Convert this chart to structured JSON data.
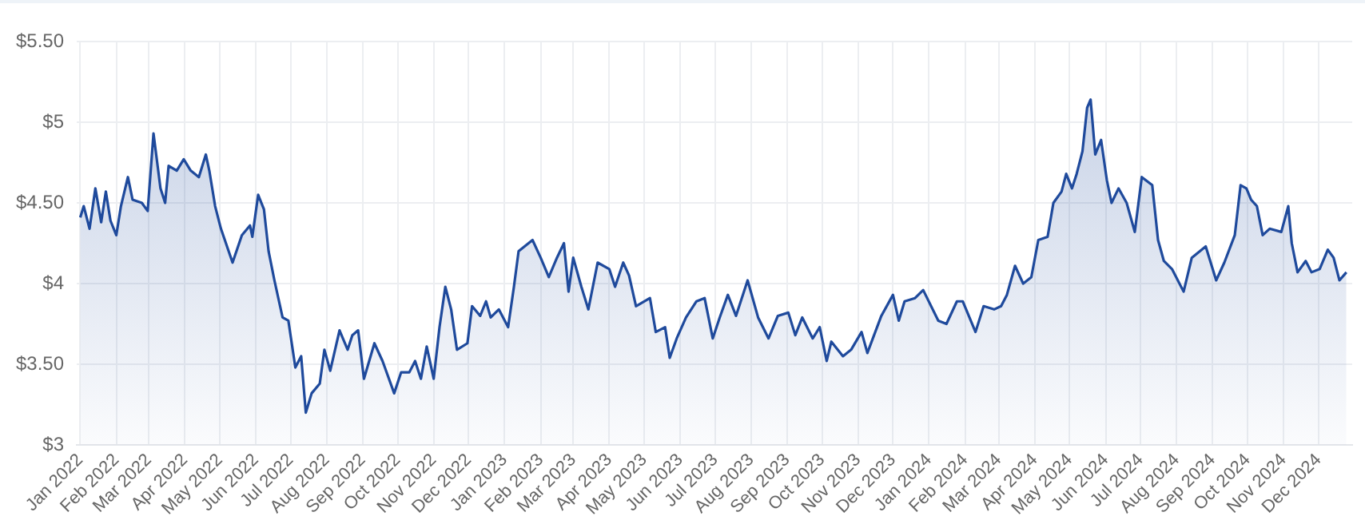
{
  "chart_data": {
    "type": "area",
    "x": [
      "2022-01-01",
      "2022-01-04",
      "2022-01-09",
      "2022-01-14",
      "2022-01-19",
      "2022-01-23",
      "2022-01-27",
      "2022-02-01",
      "2022-02-05",
      "2022-02-11",
      "2022-02-15",
      "2022-02-23",
      "2022-02-28",
      "2022-03-05",
      "2022-03-11",
      "2022-03-15",
      "2022-03-18",
      "2022-03-25",
      "2022-03-31",
      "2022-04-06",
      "2022-04-13",
      "2022-04-19",
      "2022-04-22",
      "2022-04-27",
      "2022-05-02",
      "2022-05-12",
      "2022-05-20",
      "2022-05-27",
      "2022-05-29",
      "2022-06-03",
      "2022-06-08",
      "2022-06-12",
      "2022-06-17",
      "2022-06-24",
      "2022-06-29",
      "2022-07-05",
      "2022-07-10",
      "2022-07-14",
      "2022-07-19",
      "2022-07-26",
      "2022-07-30",
      "2022-08-04",
      "2022-08-12",
      "2022-08-19",
      "2022-08-23",
      "2022-08-28",
      "2022-09-02",
      "2022-09-11",
      "2022-09-18",
      "2022-09-28",
      "2022-10-04",
      "2022-10-11",
      "2022-10-16",
      "2022-10-21",
      "2022-10-26",
      "2022-11-01",
      "2022-11-06",
      "2022-11-11",
      "2022-11-16",
      "2022-11-21",
      "2022-11-30",
      "2022-12-04",
      "2022-12-11",
      "2022-12-16",
      "2022-12-20",
      "2022-12-27",
      "2023-01-04",
      "2023-01-09",
      "2023-01-13",
      "2023-01-25",
      "2023-02-01",
      "2023-02-08",
      "2023-02-15",
      "2023-02-21",
      "2023-02-25",
      "2023-03-01",
      "2023-03-08",
      "2023-03-14",
      "2023-03-22",
      "2023-04-01",
      "2023-04-06",
      "2023-04-13",
      "2023-04-18",
      "2023-04-24",
      "2023-05-06",
      "2023-05-11",
      "2023-05-19",
      "2023-05-23",
      "2023-05-29",
      "2023-06-06",
      "2023-06-15",
      "2023-06-22",
      "2023-06-29",
      "2023-07-05",
      "2023-07-12",
      "2023-07-19",
      "2023-07-29",
      "2023-08-07",
      "2023-08-16",
      "2023-08-24",
      "2023-09-02",
      "2023-09-08",
      "2023-09-14",
      "2023-09-23",
      "2023-09-29",
      "2023-10-05",
      "2023-10-09",
      "2023-10-19",
      "2023-10-26",
      "2023-11-04",
      "2023-11-09",
      "2023-11-21",
      "2023-12-01",
      "2023-12-06",
      "2023-12-11",
      "2023-12-20",
      "2023-12-27",
      "2024-01-09",
      "2024-01-16",
      "2024-01-25",
      "2024-01-30",
      "2024-02-10",
      "2024-02-17",
      "2024-02-26",
      "2024-03-03",
      "2024-03-08",
      "2024-03-15",
      "2024-03-22",
      "2024-03-29",
      "2024-04-04",
      "2024-04-12",
      "2024-04-17",
      "2024-04-24",
      "2024-04-28",
      "2024-05-03",
      "2024-05-07",
      "2024-05-12",
      "2024-05-16",
      "2024-05-19",
      "2024-05-23",
      "2024-05-28",
      "2024-06-02",
      "2024-06-06",
      "2024-06-12",
      "2024-06-19",
      "2024-06-26",
      "2024-07-02",
      "2024-07-11",
      "2024-07-16",
      "2024-07-21",
      "2024-07-28",
      "2024-08-07",
      "2024-08-14",
      "2024-08-26",
      "2024-09-04",
      "2024-09-11",
      "2024-09-20",
      "2024-09-25",
      "2024-09-30",
      "2024-10-04",
      "2024-10-09",
      "2024-10-14",
      "2024-10-20",
      "2024-10-30",
      "2024-11-05",
      "2024-11-08",
      "2024-11-13",
      "2024-11-20",
      "2024-11-25",
      "2024-12-02",
      "2024-12-09",
      "2024-12-14",
      "2024-12-19",
      "2024-12-25"
    ],
    "series": [
      {
        "color": "#1f4a9c",
        "values": [
          4.41,
          4.48,
          4.34,
          4.59,
          4.38,
          4.57,
          4.39,
          4.3,
          4.48,
          4.66,
          4.52,
          4.5,
          4.45,
          4.93,
          4.59,
          4.5,
          4.73,
          4.7,
          4.77,
          4.7,
          4.66,
          4.8,
          4.7,
          4.48,
          4.34,
          4.13,
          4.3,
          4.36,
          4.29,
          4.55,
          4.46,
          4.2,
          4.02,
          3.79,
          3.77,
          3.48,
          3.55,
          3.2,
          3.32,
          3.38,
          3.59,
          3.46,
          3.71,
          3.59,
          3.68,
          3.71,
          3.41,
          3.63,
          3.52,
          3.32,
          3.45,
          3.45,
          3.52,
          3.41,
          3.61,
          3.41,
          3.73,
          3.98,
          3.84,
          3.59,
          3.63,
          3.86,
          3.8,
          3.89,
          3.79,
          3.84,
          3.73,
          3.98,
          4.2,
          4.27,
          4.16,
          4.04,
          4.16,
          4.25,
          3.95,
          4.16,
          3.98,
          3.84,
          4.13,
          4.09,
          3.98,
          4.13,
          4.05,
          3.86,
          3.91,
          3.7,
          3.73,
          3.54,
          3.66,
          3.79,
          3.89,
          3.91,
          3.66,
          3.79,
          3.93,
          3.8,
          4.02,
          3.79,
          3.66,
          3.8,
          3.82,
          3.68,
          3.79,
          3.66,
          3.73,
          3.52,
          3.64,
          3.55,
          3.59,
          3.7,
          3.57,
          3.8,
          3.93,
          3.77,
          3.89,
          3.91,
          3.96,
          3.77,
          3.75,
          3.89,
          3.89,
          3.7,
          3.86,
          3.84,
          3.86,
          3.93,
          4.11,
          4.0,
          4.04,
          4.27,
          4.29,
          4.5,
          4.57,
          4.68,
          4.59,
          4.68,
          4.82,
          5.09,
          5.14,
          4.8,
          4.89,
          4.64,
          4.5,
          4.59,
          4.5,
          4.32,
          4.66,
          4.61,
          4.27,
          4.14,
          4.09,
          3.95,
          4.16,
          4.23,
          4.02,
          4.13,
          4.3,
          4.61,
          4.59,
          4.52,
          4.48,
          4.3,
          4.34,
          4.32,
          4.48,
          4.25,
          4.07,
          4.14,
          4.07,
          4.09,
          4.21,
          4.16,
          4.02,
          4.07
        ]
      }
    ],
    "xlim": [
      "2021-12-29",
      "2024-12-30"
    ],
    "xticks": [
      {
        "value": "2022-01-01",
        "label": "Jan 2022"
      },
      {
        "value": "2022-02-01",
        "label": "Feb 2022"
      },
      {
        "value": "2022-03-01",
        "label": "Mar 2022"
      },
      {
        "value": "2022-04-01",
        "label": "Apr 2022"
      },
      {
        "value": "2022-05-01",
        "label": "May 2022"
      },
      {
        "value": "2022-06-01",
        "label": "Jun 2022"
      },
      {
        "value": "2022-07-01",
        "label": "Jul 2022"
      },
      {
        "value": "2022-08-01",
        "label": "Aug 2022"
      },
      {
        "value": "2022-09-01",
        "label": "Sep 2022"
      },
      {
        "value": "2022-10-01",
        "label": "Oct 2022"
      },
      {
        "value": "2022-11-01",
        "label": "Nov 2022"
      },
      {
        "value": "2022-12-01",
        "label": "Dec 2022"
      },
      {
        "value": "2023-01-01",
        "label": "Jan 2023"
      },
      {
        "value": "2023-02-01",
        "label": "Feb 2023"
      },
      {
        "value": "2023-03-01",
        "label": "Mar 2023"
      },
      {
        "value": "2023-04-01",
        "label": "Apr 2023"
      },
      {
        "value": "2023-05-01",
        "label": "May 2023"
      },
      {
        "value": "2023-06-01",
        "label": "Jun 2023"
      },
      {
        "value": "2023-07-01",
        "label": "Jul 2023"
      },
      {
        "value": "2023-08-01",
        "label": "Aug 2023"
      },
      {
        "value": "2023-09-01",
        "label": "Sep 2023"
      },
      {
        "value": "2023-10-01",
        "label": "Oct 2023"
      },
      {
        "value": "2023-11-01",
        "label": "Nov 2023"
      },
      {
        "value": "2023-12-01",
        "label": "Dec 2023"
      },
      {
        "value": "2024-01-01",
        "label": "Jan 2024"
      },
      {
        "value": "2024-02-01",
        "label": "Feb 2024"
      },
      {
        "value": "2024-03-01",
        "label": "Mar 2024"
      },
      {
        "value": "2024-04-01",
        "label": "Apr 2024"
      },
      {
        "value": "2024-05-01",
        "label": "May 2024"
      },
      {
        "value": "2024-06-01",
        "label": "Jun 2024"
      },
      {
        "value": "2024-07-01",
        "label": "Jul 2024"
      },
      {
        "value": "2024-08-01",
        "label": "Aug 2024"
      },
      {
        "value": "2024-09-01",
        "label": "Sep 2024"
      },
      {
        "value": "2024-10-01",
        "label": "Oct 2024"
      },
      {
        "value": "2024-11-01",
        "label": "Nov 2024"
      },
      {
        "value": "2024-12-01",
        "label": "Dec 2024"
      }
    ],
    "ylim": [
      3,
      5.5
    ],
    "yticks": [
      {
        "value": 3,
        "label": "$3"
      },
      {
        "value": 3.5,
        "label": "$3.50"
      },
      {
        "value": 4,
        "label": "$4"
      },
      {
        "value": 4.5,
        "label": "$4.50"
      },
      {
        "value": 5,
        "label": "$5"
      },
      {
        "value": 5.5,
        "label": "$5.50"
      }
    ],
    "grid": true,
    "marker": "none"
  }
}
